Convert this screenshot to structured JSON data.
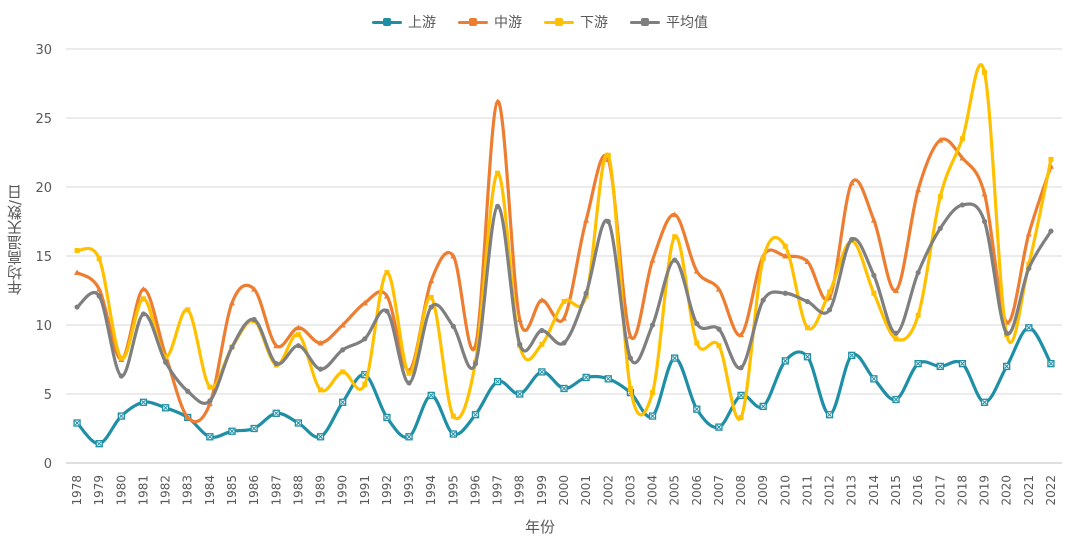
{
  "chart_data": {
    "type": "line",
    "title": "",
    "xlabel": "年份",
    "ylabel": "年均高温天数/日",
    "ylim": [
      0,
      30
    ],
    "yticks": [
      0,
      5,
      10,
      15,
      20,
      25,
      30
    ],
    "grid": true,
    "legend_position": "top",
    "categories": [
      "1978",
      "1979",
      "1980",
      "1981",
      "1982",
      "1983",
      "1984",
      "1985",
      "1986",
      "1987",
      "1988",
      "1989",
      "1990",
      "1991",
      "1992",
      "1993",
      "1994",
      "1995",
      "1996",
      "1997",
      "1998",
      "1999",
      "2000",
      "2001",
      "2002",
      "2003",
      "2004",
      "2005",
      "2006",
      "2007",
      "2008",
      "2009",
      "2010",
      "2011",
      "2012",
      "2013",
      "2014",
      "2015",
      "2016",
      "2017",
      "2018",
      "2019",
      "2020",
      "2021",
      "2022"
    ],
    "series": [
      {
        "name": "上游",
        "color": "#1F8FA6",
        "marker": "square-x",
        "values": [
          2.9,
          1.4,
          3.4,
          4.4,
          4.0,
          3.3,
          1.9,
          2.3,
          2.5,
          3.6,
          2.9,
          1.9,
          4.4,
          6.4,
          3.3,
          1.9,
          4.9,
          2.1,
          3.5,
          5.9,
          5.0,
          6.6,
          5.4,
          6.2,
          6.1,
          5.1,
          3.4,
          7.6,
          3.9,
          2.6,
          4.9,
          4.1,
          7.4,
          7.7,
          3.5,
          7.8,
          6.1,
          4.6,
          7.2,
          7.0,
          7.2,
          4.4,
          7.0,
          9.8,
          7.2
        ]
      },
      {
        "name": "中游",
        "color": "#ED7D31",
        "marker": "triangle",
        "values": [
          13.8,
          12.6,
          7.5,
          12.6,
          7.8,
          3.3,
          4.3,
          11.6,
          12.6,
          8.5,
          9.8,
          8.7,
          10.0,
          11.6,
          12.1,
          6.7,
          13.2,
          15.0,
          8.5,
          26.2,
          10.4,
          11.8,
          10.5,
          17.6,
          22.0,
          9.2,
          14.7,
          18.0,
          13.9,
          12.6,
          9.3,
          15.0,
          15.0,
          14.6,
          12.0,
          20.3,
          17.6,
          12.5,
          19.8,
          23.4,
          22.1,
          19.5,
          10.2,
          16.6,
          21.5
        ]
      },
      {
        "name": "下游",
        "color": "#FFC000",
        "marker": "square",
        "values": [
          15.4,
          14.8,
          7.6,
          11.9,
          7.7,
          11.1,
          5.5,
          8.4,
          10.3,
          7.1,
          9.3,
          5.3,
          6.6,
          5.7,
          13.8,
          6.5,
          12.0,
          3.4,
          7.3,
          21.0,
          8.5,
          8.6,
          11.7,
          12.1,
          22.3,
          5.4,
          5.1,
          16.4,
          8.7,
          8.5,
          3.3,
          14.8,
          15.7,
          9.8,
          12.4,
          16.1,
          12.3,
          9.0,
          10.7,
          19.3,
          23.5,
          28.3,
          9.3,
          14.4,
          22.0
        ]
      },
      {
        "name": "平均值",
        "color": "#7F7F7F",
        "marker": "circle",
        "values": [
          11.3,
          12.1,
          6.3,
          10.8,
          7.3,
          5.2,
          4.5,
          8.4,
          10.4,
          7.2,
          8.5,
          6.8,
          8.2,
          9.0,
          11.0,
          5.8,
          11.3,
          9.9,
          7.2,
          18.6,
          8.6,
          9.6,
          8.7,
          12.3,
          17.5,
          7.6,
          10.0,
          14.7,
          10.1,
          9.7,
          6.9,
          11.8,
          12.3,
          11.7,
          11.1,
          16.2,
          13.6,
          9.4,
          13.8,
          17.0,
          18.7,
          17.5,
          9.4,
          14.1,
          16.8
        ]
      }
    ]
  }
}
